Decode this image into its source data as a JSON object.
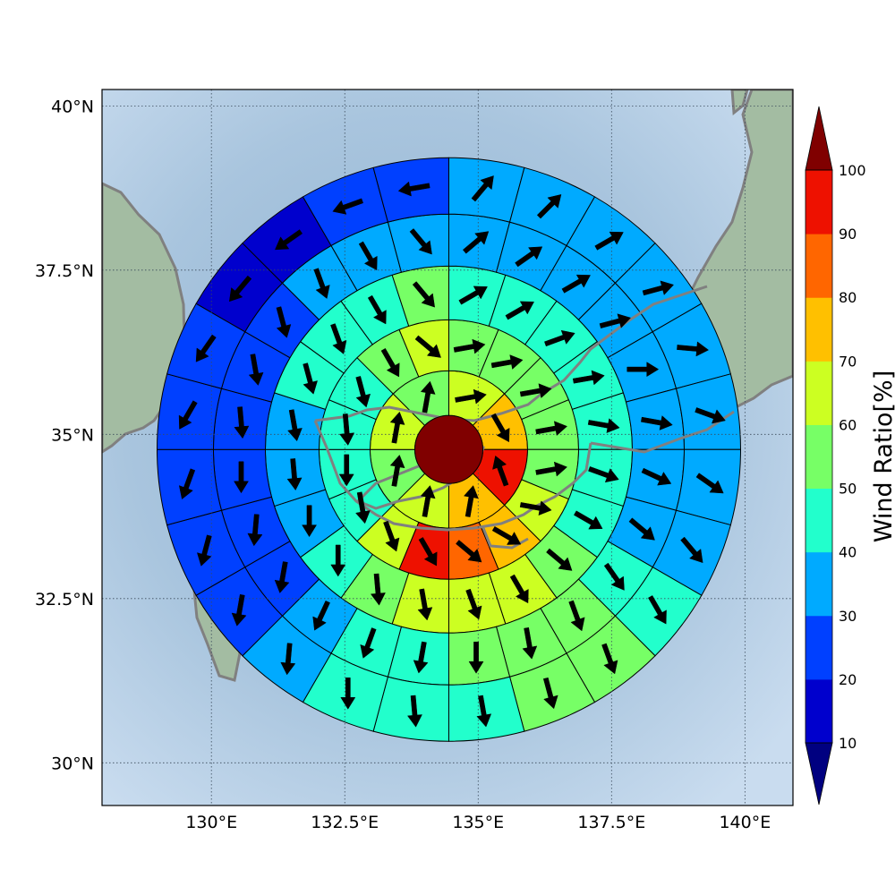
{
  "chart_data": {
    "type": "heatmap",
    "subtype": "polar-sector wind map with direction arrows",
    "x_ticks": [
      "130°E",
      "132.5°E",
      "135°E",
      "137.5°E",
      "140°E"
    ],
    "x_tick_values": [
      130,
      132.5,
      135,
      137.5,
      140
    ],
    "y_ticks": [
      "30°N",
      "32.5°N",
      "35°N",
      "37.5°N",
      "40°N"
    ],
    "y_tick_values": [
      30,
      32.5,
      35,
      37.5,
      40
    ],
    "xlim": [
      127.95,
      140.9
    ],
    "ylim": [
      29.35,
      40.25
    ],
    "grid": true,
    "colorbar": {
      "label": "Wind Ratio[%]",
      "ticks": [
        "10",
        "20",
        "30",
        "40",
        "50",
        "60",
        "70",
        "80",
        "90",
        "100"
      ],
      "tick_values": [
        10,
        20,
        30,
        40,
        50,
        60,
        70,
        80,
        90,
        100
      ],
      "extend": "both",
      "colors": [
        "#0000cd",
        "#0040ff",
        "#00aaff",
        "#22ffcc",
        "#77ff66",
        "#ccff22",
        "#ffc000",
        "#ff6600",
        "#ee1100"
      ],
      "under_color": "#000080",
      "over_color": "#800000"
    },
    "center": {
      "lon": 134.45,
      "lat": 34.77,
      "wind_ratio": 100
    },
    "rings": [
      {
        "ring": 1,
        "wind_ratio": [
          60,
          70,
          90,
          70,
          60,
          50,
          60,
          50
        ]
      },
      {
        "ring": 2,
        "wind_ratio": [
          50,
          50,
          50,
          50,
          50,
          60,
          70,
          80,
          90,
          60,
          40,
          40,
          40,
          40,
          50,
          60
        ]
      },
      {
        "ring": 3,
        "wind_ratio": [
          40,
          40,
          40,
          40,
          40,
          40,
          40,
          50,
          60,
          60,
          60,
          50,
          40,
          30,
          30,
          30,
          40,
          40,
          40,
          50
        ]
      },
      {
        "ring": 4,
        "wind_ratio": [
          30,
          30,
          30,
          30,
          30,
          30,
          30,
          30,
          40,
          50,
          50,
          50,
          40,
          40,
          30,
          20,
          20,
          20,
          20,
          20,
          20,
          30,
          30,
          30
        ]
      },
      {
        "ring": 5,
        "wind_ratio": [
          30,
          30,
          30,
          30,
          30,
          30,
          30,
          30,
          40,
          50,
          50,
          40,
          40,
          40,
          30,
          20,
          20,
          20,
          20,
          20,
          10,
          10,
          20,
          20
        ]
      }
    ],
    "wind_arrows": [
      {
        "ring": 0,
        "wind_direction_deg": [
          80,
          150,
          340,
          10,
          10,
          10,
          10,
          10
        ]
      },
      {
        "ring": 1,
        "wind_direction_deg": [
          80,
          80,
          80,
          80,
          80,
          100,
          120,
          130,
          150,
          160,
          170,
          180,
          175,
          165,
          150,
          130
        ]
      },
      {
        "ring": 2,
        "wind_direction_deg": [
          60,
          60,
          70,
          80,
          100,
          110,
          120,
          130,
          150,
          160,
          170,
          175,
          180,
          180,
          175,
          170,
          165,
          160,
          150,
          140
        ]
      },
      {
        "ring": 3,
        "wind_direction_deg": [
          50,
          55,
          60,
          75,
          90,
          100,
          115,
          130,
          145,
          160,
          170,
          180,
          190,
          200,
          205,
          190,
          185,
          180,
          175,
          170,
          165,
          160,
          150,
          140
        ]
      },
      {
        "ring": 4,
        "wind_direction_deg": [
          40,
          45,
          60,
          75,
          95,
          110,
          125,
          140,
          150,
          160,
          165,
          170,
          175,
          180,
          185,
          190,
          195,
          200,
          210,
          215,
          220,
          235,
          250,
          260
        ]
      }
    ]
  },
  "palette": {
    "land": "#9cb8a0",
    "sea": "#b4cde4",
    "coast": "#808080",
    "grid": "#3a4a5a"
  }
}
